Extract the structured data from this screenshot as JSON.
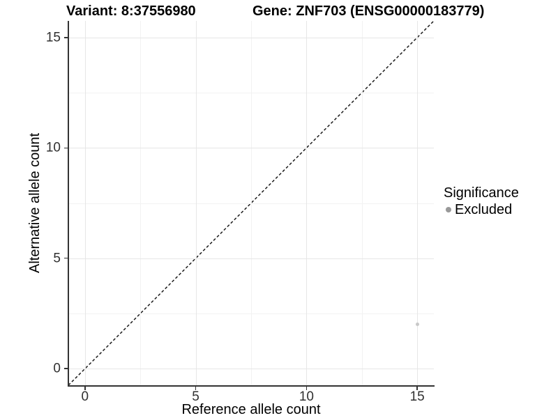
{
  "title": {
    "variant": "Variant: 8:37556980",
    "gene": "Gene: ZNF703 (ENSG00000183779)"
  },
  "legend": {
    "title": "Significance",
    "items": [
      {
        "label": "Excluded",
        "color": "#999999"
      }
    ]
  },
  "chart_data": {
    "type": "scatter",
    "title": "Variant: 8:37556980  /  Gene: ZNF703 (ENSG00000183779)",
    "xlabel": "Reference allele count",
    "ylabel": "Alternative allele count",
    "xlim": [
      -0.75,
      15.75
    ],
    "ylim": [
      -0.75,
      15.75
    ],
    "x_ticks": [
      0,
      5,
      10,
      15
    ],
    "y_ticks": [
      0,
      5,
      10,
      15
    ],
    "x_minor_ticks": [
      2.5,
      7.5,
      12.5
    ],
    "y_minor_ticks": [
      2.5,
      7.5,
      12.5
    ],
    "grid": true,
    "legend_position": "right",
    "series": [
      {
        "name": "Excluded",
        "point_color": "#c8c8c8",
        "legend_color": "#999999",
        "points": [
          {
            "x": 15,
            "y": 2
          }
        ]
      }
    ],
    "reference_line": {
      "type": "identity y=x",
      "style": "dashed",
      "color": "#1a1a1a",
      "from": [
        -0.75,
        -0.75
      ],
      "to": [
        15.75,
        15.75
      ]
    }
  }
}
